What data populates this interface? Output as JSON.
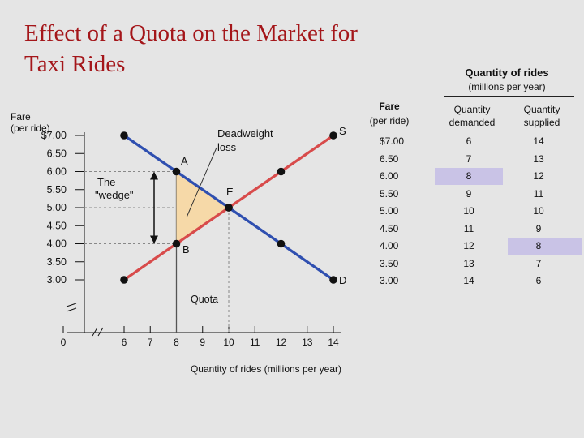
{
  "title": "Effect of a Quota on the Market for Taxi Rides",
  "colors": {
    "title": "#a4161a",
    "supply": "#d84b4b",
    "demand": "#2f4fb0",
    "wedge_fill": "#f6d9a8",
    "highlight": "#c9c3e6"
  },
  "chart_data": {
    "type": "line",
    "y_axis_title": [
      "Fare",
      "(per ride)"
    ],
    "xlabel": "Quantity of rides (millions per year)",
    "x_ticks": [
      "0",
      "6",
      "7",
      "8",
      "9",
      "10",
      "11",
      "12",
      "13",
      "14"
    ],
    "y_ticks": [
      "$7.00",
      "6.50",
      "6.00",
      "5.50",
      "5.00",
      "4.50",
      "4.00",
      "3.50",
      "3.00"
    ],
    "xlim": [
      6,
      14
    ],
    "ylim": [
      3.0,
      7.0
    ],
    "series": [
      {
        "name": "S",
        "x": [
          6,
          7,
          8,
          9,
          10,
          11,
          12,
          13,
          14
        ],
        "y": [
          3.0,
          3.5,
          4.0,
          4.5,
          5.0,
          5.5,
          6.0,
          6.5,
          7.0
        ]
      },
      {
        "name": "D",
        "x": [
          6,
          7,
          8,
          9,
          10,
          11,
          12,
          13,
          14
        ],
        "y": [
          7.0,
          6.5,
          6.0,
          5.5,
          5.0,
          4.5,
          4.0,
          3.5,
          3.0
        ]
      }
    ],
    "points": [
      {
        "label": "A",
        "x": 8,
        "y": 6.0
      },
      {
        "label": "B",
        "x": 8,
        "y": 4.0
      },
      {
        "label": "E",
        "x": 10,
        "y": 5.0
      }
    ],
    "quota": 8,
    "annotations": [
      "Deadweight loss",
      "The \"wedge\"",
      "Quota"
    ]
  },
  "table": {
    "title": "Quantity of rides",
    "subtitle": "(millions per year)",
    "fare_header": "Fare",
    "fare_sub": "(per ride)",
    "qd_header": [
      "Quantity",
      "demanded"
    ],
    "qs_header": [
      "Quantity",
      "supplied"
    ],
    "rows": [
      {
        "fare": "$7.00",
        "qd": "6",
        "qs": "14"
      },
      {
        "fare": "6.50",
        "qd": "7",
        "qs": "13"
      },
      {
        "fare": "6.00",
        "qd": "8",
        "qs": "12"
      },
      {
        "fare": "5.50",
        "qd": "9",
        "qs": "11"
      },
      {
        "fare": "5.00",
        "qd": "10",
        "qs": "10"
      },
      {
        "fare": "4.50",
        "qd": "11",
        "qs": "9"
      },
      {
        "fare": "4.00",
        "qd": "12",
        "qs": "8"
      },
      {
        "fare": "3.50",
        "qd": "13",
        "qs": "7"
      },
      {
        "fare": "3.00",
        "qd": "14",
        "qs": "6"
      }
    ],
    "highlight_cells": [
      "2.qd",
      "6.qs"
    ]
  }
}
